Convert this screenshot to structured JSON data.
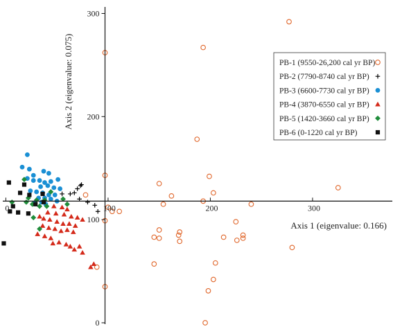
{
  "chart_data": {
    "type": "scatter",
    "xlabel": "Axis 1 (eigenvalue: 0.166)",
    "ylabel": "Axis 2 (eigenvalue: 0.075)",
    "x_ticks": [
      "0",
      "100",
      "200",
      "300"
    ],
    "y_ticks": [
      "0",
      "100",
      "200",
      "300"
    ],
    "x_tick_values": [
      0,
      100,
      200,
      300
    ],
    "y_tick_values": [
      0,
      100,
      200,
      300
    ],
    "xlim": [
      -3,
      378
    ],
    "ylim": [
      0,
      305
    ],
    "x_axis_at_y": 118,
    "y_axis_at_x": 97,
    "grid": false,
    "legend_position": "right",
    "series": [
      {
        "name": "PB-1 (9550-26,200 cal yr BP)",
        "marker": "open-circle",
        "color": "#e0662a",
        "points": [
          [
            277,
            292
          ],
          [
            193,
            267
          ],
          [
            97,
            262
          ],
          [
            187,
            178
          ],
          [
            325,
            131
          ],
          [
            78,
            124
          ],
          [
            97,
            143
          ],
          [
            150,
            135
          ],
          [
            199,
            142
          ],
          [
            203,
            126
          ],
          [
            162,
            123
          ],
          [
            193,
            118
          ],
          [
            100,
            112
          ],
          [
            111,
            108
          ],
          [
            154,
            115
          ],
          [
            240,
            115
          ],
          [
            104,
            108
          ],
          [
            97,
            99
          ],
          [
            225,
            98
          ],
          [
            150,
            90
          ],
          [
            170,
            88
          ],
          [
            169,
            85
          ],
          [
            232,
            85
          ],
          [
            232,
            82
          ],
          [
            145,
            83
          ],
          [
            150,
            82
          ],
          [
            213,
            83
          ],
          [
            170,
            79
          ],
          [
            280,
            73
          ],
          [
            226,
            80
          ],
          [
            145,
            57
          ],
          [
            205,
            58
          ],
          [
            89,
            54
          ],
          [
            203,
            42
          ],
          [
            97,
            35
          ],
          [
            198,
            31
          ],
          [
            195,
            0
          ]
        ]
      },
      {
        "name": "PB-2 (7790-8740 cal yr BP)",
        "marker": "plus",
        "color": "#000000",
        "points": [
          [
            67,
            126
          ],
          [
            70,
            130
          ],
          [
            73,
            133
          ],
          [
            74,
            134
          ],
          [
            55,
            125
          ],
          [
            63,
            125
          ],
          [
            72,
            120
          ],
          [
            80,
            117
          ],
          [
            87,
            114
          ],
          [
            90,
            108
          ]
        ]
      },
      {
        "name": "PB-3 (6600-7730 cal yr BP)",
        "marker": "filled-circle",
        "color": "#1a8fd4",
        "points": [
          [
            21,
            163
          ],
          [
            16,
            151
          ],
          [
            23,
            149
          ],
          [
            37,
            147
          ],
          [
            27,
            143
          ],
          [
            42,
            145
          ],
          [
            21,
            140
          ],
          [
            27,
            138
          ],
          [
            33,
            138
          ],
          [
            38,
            136
          ],
          [
            44,
            137
          ],
          [
            51,
            139
          ],
          [
            34,
            132
          ],
          [
            41,
            133
          ],
          [
            47,
            131
          ],
          [
            53,
            130
          ],
          [
            24,
            128
          ],
          [
            30,
            127
          ],
          [
            36,
            126
          ],
          [
            42,
            124
          ],
          [
            48,
            124
          ],
          [
            32,
            121
          ],
          [
            38,
            121
          ],
          [
            44,
            120
          ],
          [
            50,
            118
          ],
          [
            35,
            117
          ],
          [
            39,
            115
          ],
          [
            28,
            116
          ]
        ]
      },
      {
        "name": "PB-4 (3870-6550 cal yr BP)",
        "marker": "filled-triangle",
        "color": "#d42a1a",
        "points": [
          [
            47,
            113
          ],
          [
            55,
            112
          ],
          [
            60,
            110
          ],
          [
            41,
            107
          ],
          [
            49,
            106
          ],
          [
            57,
            105
          ],
          [
            64,
            103
          ],
          [
            70,
            102
          ],
          [
            75,
            100
          ],
          [
            33,
            103
          ],
          [
            37,
            101
          ],
          [
            43,
            100
          ],
          [
            50,
            98
          ],
          [
            56,
            96
          ],
          [
            62,
            96
          ],
          [
            68,
            94
          ],
          [
            36,
            94
          ],
          [
            42,
            92
          ],
          [
            48,
            91
          ],
          [
            54,
            89
          ],
          [
            60,
            90
          ],
          [
            66,
            88
          ],
          [
            31,
            86
          ],
          [
            38,
            84
          ],
          [
            44,
            82
          ],
          [
            52,
            78
          ],
          [
            59,
            76
          ],
          [
            63,
            74
          ],
          [
            67,
            71
          ],
          [
            75,
            68
          ],
          [
            46,
            77
          ],
          [
            72,
            74
          ],
          [
            83,
            54
          ],
          [
            86,
            57
          ]
        ]
      },
      {
        "name": "PB-5 (1420-3660 cal yr BP)",
        "marker": "filled-diamond",
        "color": "#1f8c3a",
        "points": [
          [
            18,
            139
          ],
          [
            44,
            127
          ],
          [
            22,
            121
          ],
          [
            30,
            119
          ],
          [
            38,
            119
          ],
          [
            56,
            120
          ],
          [
            6,
            117
          ],
          [
            20,
            117
          ],
          [
            26,
            115
          ],
          [
            33,
            113
          ],
          [
            40,
            113
          ],
          [
            60,
            115
          ],
          [
            27,
            102
          ],
          [
            33,
            91
          ]
        ]
      },
      {
        "name": "PB-6 (0-1220 cal yr BP)",
        "marker": "filled-square",
        "color": "#111111",
        "points": [
          [
            3,
            136
          ],
          [
            18,
            134
          ],
          [
            14,
            126
          ],
          [
            23,
            124
          ],
          [
            36,
            125
          ],
          [
            7,
            113
          ],
          [
            29,
            115
          ],
          [
            4,
            108
          ],
          [
            12,
            107
          ],
          [
            22,
            106
          ],
          [
            37,
            117
          ],
          [
            -2,
            77
          ]
        ]
      }
    ]
  }
}
